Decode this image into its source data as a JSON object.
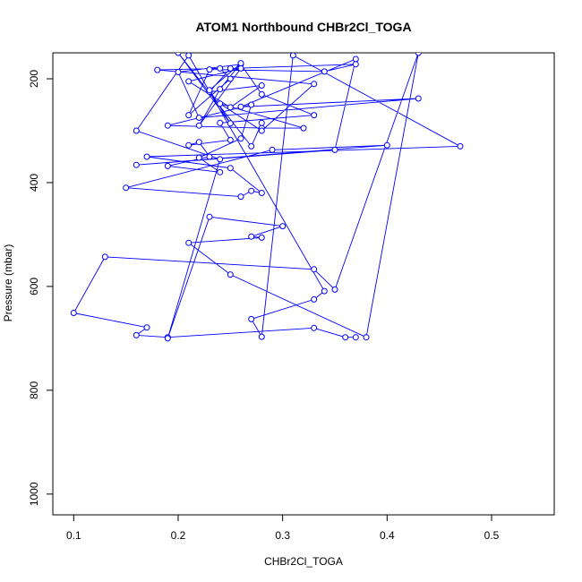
{
  "chart_data": {
    "type": "line",
    "title": "ATOM1 Northbound CHBr2Cl_TOGA",
    "xlabel": "CHBr2Cl_TOGA",
    "ylabel": "Pressure (mbar)",
    "xlim": [
      0.08,
      0.56
    ],
    "ylim": [
      1040,
      150
    ],
    "y_reversed": true,
    "x_ticks": [
      0.1,
      0.2,
      0.3,
      0.4,
      0.5
    ],
    "x_tick_labels": [
      "0.1",
      "0.2",
      "0.3",
      "0.4",
      "0.5"
    ],
    "y_ticks": [
      200,
      400,
      600,
      800,
      1000
    ],
    "y_tick_labels": [
      "200",
      "400",
      "600",
      "800",
      "1000"
    ],
    "grid": false,
    "legend": "none",
    "series": [
      {
        "color": "#0000ff",
        "marker": "open-circle",
        "points": [
          [
            0.37,
            698
          ],
          [
            0.36,
            698
          ],
          [
            0.33,
            680
          ],
          [
            0.19,
            698
          ],
          [
            0.16,
            694
          ],
          [
            0.17,
            679
          ],
          [
            0.1,
            651
          ],
          [
            0.13,
            543
          ],
          [
            0.33,
            567
          ],
          [
            0.35,
            606
          ],
          [
            0.43,
            150
          ],
          [
            0.38,
            698
          ],
          [
            0.25,
            577
          ],
          [
            0.21,
            516
          ],
          [
            0.28,
            506
          ],
          [
            0.27,
            504
          ],
          [
            0.3,
            484
          ],
          [
            0.23,
            466
          ],
          [
            0.19,
            700
          ],
          [
            0.24,
            355
          ],
          [
            0.16,
            300
          ],
          [
            0.21,
            155
          ],
          [
            0.34,
            609
          ],
          [
            0.33,
            625
          ],
          [
            0.27,
            663
          ],
          [
            0.28,
            697
          ],
          [
            0.31,
            155
          ],
          [
            0.47,
            330
          ],
          [
            0.17,
            350
          ],
          [
            0.25,
            372
          ],
          [
            0.28,
            420
          ],
          [
            0.27,
            416
          ],
          [
            0.26,
            427
          ],
          [
            0.15,
            410
          ],
          [
            0.29,
            337
          ],
          [
            0.4,
            328
          ],
          [
            0.16,
            366
          ],
          [
            0.35,
            337
          ],
          [
            0.37,
            162
          ],
          [
            0.26,
            254
          ],
          [
            0.43,
            238
          ],
          [
            0.22,
            275
          ],
          [
            0.2,
            187
          ],
          [
            0.26,
            172
          ],
          [
            0.28,
            230
          ],
          [
            0.33,
            270
          ],
          [
            0.24,
            285
          ],
          [
            0.25,
            318
          ],
          [
            0.21,
            328
          ],
          [
            0.22,
            322
          ],
          [
            0.23,
            350
          ],
          [
            0.19,
            368
          ],
          [
            0.24,
            380
          ],
          [
            0.22,
            352
          ],
          [
            0.26,
            315
          ],
          [
            0.27,
            250
          ],
          [
            0.19,
            290
          ],
          [
            0.28,
            295
          ],
          [
            0.32,
            295
          ],
          [
            0.24,
            248
          ],
          [
            0.28,
            300
          ],
          [
            0.33,
            210
          ],
          [
            0.18,
            183
          ],
          [
            0.24,
            180
          ],
          [
            0.25,
            200
          ],
          [
            0.21,
            270
          ],
          [
            0.23,
            182
          ],
          [
            0.34,
            186
          ],
          [
            0.37,
            172
          ],
          [
            0.25,
            180
          ],
          [
            0.23,
            225
          ],
          [
            0.28,
            213
          ],
          [
            0.25,
            255
          ],
          [
            0.21,
            205
          ],
          [
            0.26,
            180
          ],
          [
            0.22,
            290
          ],
          [
            0.24,
            220
          ],
          [
            0.26,
            170
          ],
          [
            0.23,
            222
          ],
          [
            0.25,
            286
          ],
          [
            0.2,
            150
          ],
          [
            0.27,
            330
          ],
          [
            0.28,
            285
          ]
        ]
      }
    ]
  }
}
